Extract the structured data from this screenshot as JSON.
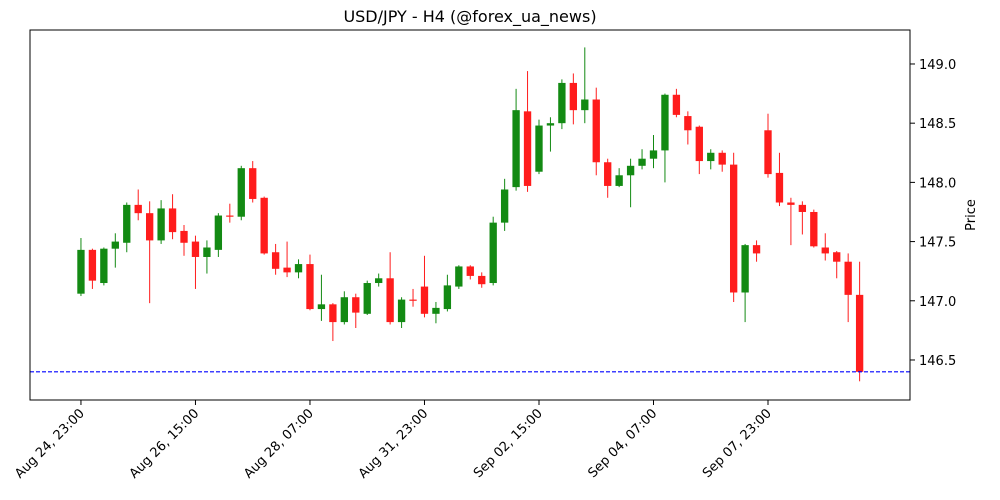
{
  "chart_data": {
    "type": "candlestick",
    "title": "USD/JPY - H4 (@forex_ua_news)",
    "y_label": "Price",
    "categories": [
      "Aug 24, 23:00",
      null,
      null,
      null,
      null,
      null,
      null,
      null,
      null,
      null,
      "Aug 26, 15:00",
      null,
      null,
      null,
      null,
      null,
      null,
      null,
      null,
      null,
      "Aug 28, 07:00",
      null,
      null,
      null,
      null,
      null,
      null,
      null,
      null,
      null,
      "Aug 31, 23:00",
      null,
      null,
      null,
      null,
      null,
      null,
      null,
      null,
      null,
      "Sep 02, 15:00",
      null,
      null,
      null,
      null,
      null,
      null,
      null,
      null,
      null,
      "Sep 04, 07:00",
      null,
      null,
      null,
      null,
      null,
      null,
      null,
      null,
      null,
      "Sep 07, 23:00",
      null,
      null,
      null,
      null,
      null,
      null,
      null,
      null
    ],
    "open": [
      147.06,
      147.43,
      147.15,
      147.44,
      147.49,
      147.81,
      147.74,
      147.51,
      147.78,
      147.59,
      147.5,
      147.37,
      147.43,
      147.72,
      147.71,
      148.12,
      147.87,
      147.41,
      147.28,
      147.24,
      147.31,
      146.93,
      146.97,
      146.82,
      147.03,
      146.89,
      147.15,
      147.19,
      146.82,
      147.01,
      147.12,
      146.89,
      146.93,
      147.12,
      147.29,
      147.21,
      147.15,
      147.66,
      147.96,
      148.6,
      148.09,
      148.48,
      148.5,
      148.84,
      148.61,
      148.7,
      148.17,
      147.97,
      148.06,
      148.14,
      148.2,
      148.27,
      148.74,
      148.56,
      148.47,
      148.18,
      148.25,
      148.15,
      147.07,
      147.47,
      148.44,
      148.08,
      147.83,
      147.81,
      147.75,
      147.45,
      147.41,
      147.33,
      147.05
    ],
    "high": [
      147.53,
      147.44,
      147.45,
      147.57,
      147.83,
      147.94,
      147.84,
      147.85,
      147.9,
      147.64,
      147.55,
      147.51,
      147.74,
      147.82,
      148.14,
      148.18,
      147.88,
      147.48,
      147.5,
      147.35,
      147.39,
      147.22,
      146.98,
      147.08,
      147.06,
      147.17,
      147.23,
      147.41,
      147.03,
      147.1,
      147.38,
      146.99,
      147.22,
      147.3,
      147.3,
      147.24,
      147.71,
      148.03,
      148.79,
      148.94,
      148.53,
      148.55,
      148.87,
      148.92,
      149.14,
      148.8,
      148.2,
      148.12,
      148.2,
      148.28,
      148.4,
      148.75,
      148.79,
      148.6,
      148.48,
      148.28,
      148.27,
      148.25,
      147.48,
      147.51,
      148.58,
      148.25,
      147.87,
      147.84,
      147.77,
      147.57,
      147.42,
      147.4,
      147.33
    ],
    "low": [
      147.04,
      147.1,
      147.13,
      147.28,
      147.41,
      147.68,
      146.98,
      147.48,
      147.52,
      147.38,
      147.1,
      147.23,
      147.37,
      147.66,
      147.68,
      147.83,
      147.39,
      147.22,
      147.2,
      147.19,
      146.92,
      146.83,
      146.66,
      146.8,
      146.77,
      146.88,
      147.12,
      146.8,
      146.77,
      146.95,
      146.86,
      146.81,
      146.91,
      147.1,
      147.18,
      147.11,
      147.13,
      147.59,
      147.93,
      147.92,
      148.07,
      148.26,
      148.45,
      148.49,
      148.5,
      148.06,
      147.87,
      147.96,
      147.79,
      148.11,
      148.12,
      148.0,
      148.55,
      148.32,
      148.07,
      148.11,
      148.09,
      146.99,
      146.82,
      147.33,
      148.04,
      147.8,
      147.47,
      147.56,
      147.45,
      147.34,
      147.19,
      146.82,
      146.32
    ],
    "close": [
      147.43,
      147.17,
      147.44,
      147.5,
      147.81,
      147.74,
      147.51,
      147.78,
      147.58,
      147.49,
      147.37,
      147.45,
      147.72,
      147.71,
      148.12,
      147.86,
      147.4,
      147.27,
      147.24,
      147.31,
      146.93,
      146.97,
      146.82,
      147.03,
      146.9,
      147.15,
      147.19,
      146.82,
      147.01,
      147.0,
      146.89,
      146.94,
      147.13,
      147.29,
      147.21,
      147.14,
      147.66,
      147.94,
      148.61,
      147.97,
      148.48,
      148.5,
      148.84,
      148.61,
      148.7,
      148.17,
      147.97,
      148.06,
      148.14,
      148.2,
      148.27,
      148.74,
      148.57,
      148.44,
      148.18,
      148.25,
      148.15,
      147.07,
      147.47,
      147.4,
      148.07,
      147.83,
      147.81,
      147.75,
      147.46,
      147.4,
      147.33,
      147.05,
      146.4
    ],
    "up_color": "#138a13",
    "down_color": "#ff1c1c",
    "ylim": [
      146.162,
      149.287
    ],
    "yticks": [
      146.5,
      {
        "value": 147,
        "label": "147.0"
      },
      147.5,
      {
        "value": 148,
        "label": "148.0"
      },
      148.5,
      {
        "value": 149,
        "label": "149.0"
      }
    ],
    "hline": {
      "value": 146.4,
      "color": "#0000ff"
    }
  }
}
